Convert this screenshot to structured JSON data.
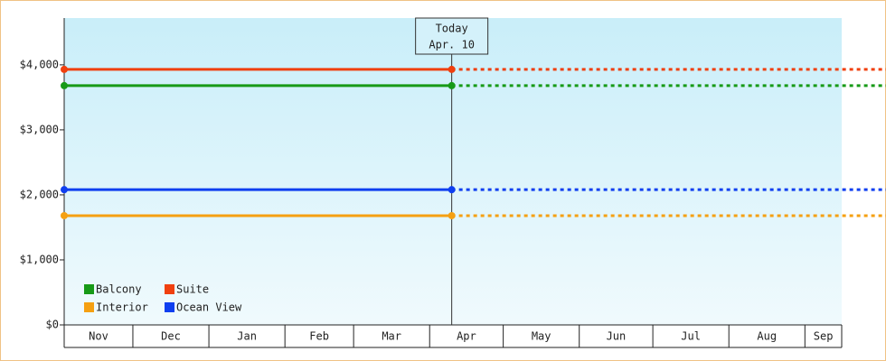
{
  "chart_data": {
    "type": "line",
    "annotation": {
      "title": "Today",
      "date": "Apr. 10"
    },
    "x": [
      0,
      158
    ],
    "xlim": [
      0,
      317
    ],
    "xticks": [
      0,
      28,
      59,
      90,
      118,
      149,
      179,
      210,
      240,
      271,
      302,
      317
    ],
    "categories": [
      "Nov",
      "Dec",
      "Jan",
      "Feb",
      "Mar",
      "Apr",
      "May",
      "Jun",
      "Jul",
      "Aug",
      "Sep"
    ],
    "ylim": [
      0,
      4720
    ],
    "yticks": [
      {
        "value": 0,
        "label": "$0"
      },
      {
        "value": 1000,
        "label": "$1,000"
      },
      {
        "value": 2000,
        "label": "$2,000"
      },
      {
        "value": 3000,
        "label": "$3,000"
      },
      {
        "value": 4000,
        "label": "$4,000"
      }
    ],
    "series": [
      {
        "name": "Balcony",
        "color": "#179a17",
        "values": [
          3680,
          3680
        ]
      },
      {
        "name": "Suite",
        "color": "#f0400f",
        "values": [
          3930,
          3930
        ]
      },
      {
        "name": "Interior",
        "color": "#f5a012",
        "values": [
          1680,
          1680
        ]
      },
      {
        "name": "Ocean View",
        "color": "#0f3ff0",
        "values": [
          2080,
          2080
        ]
      }
    ]
  }
}
